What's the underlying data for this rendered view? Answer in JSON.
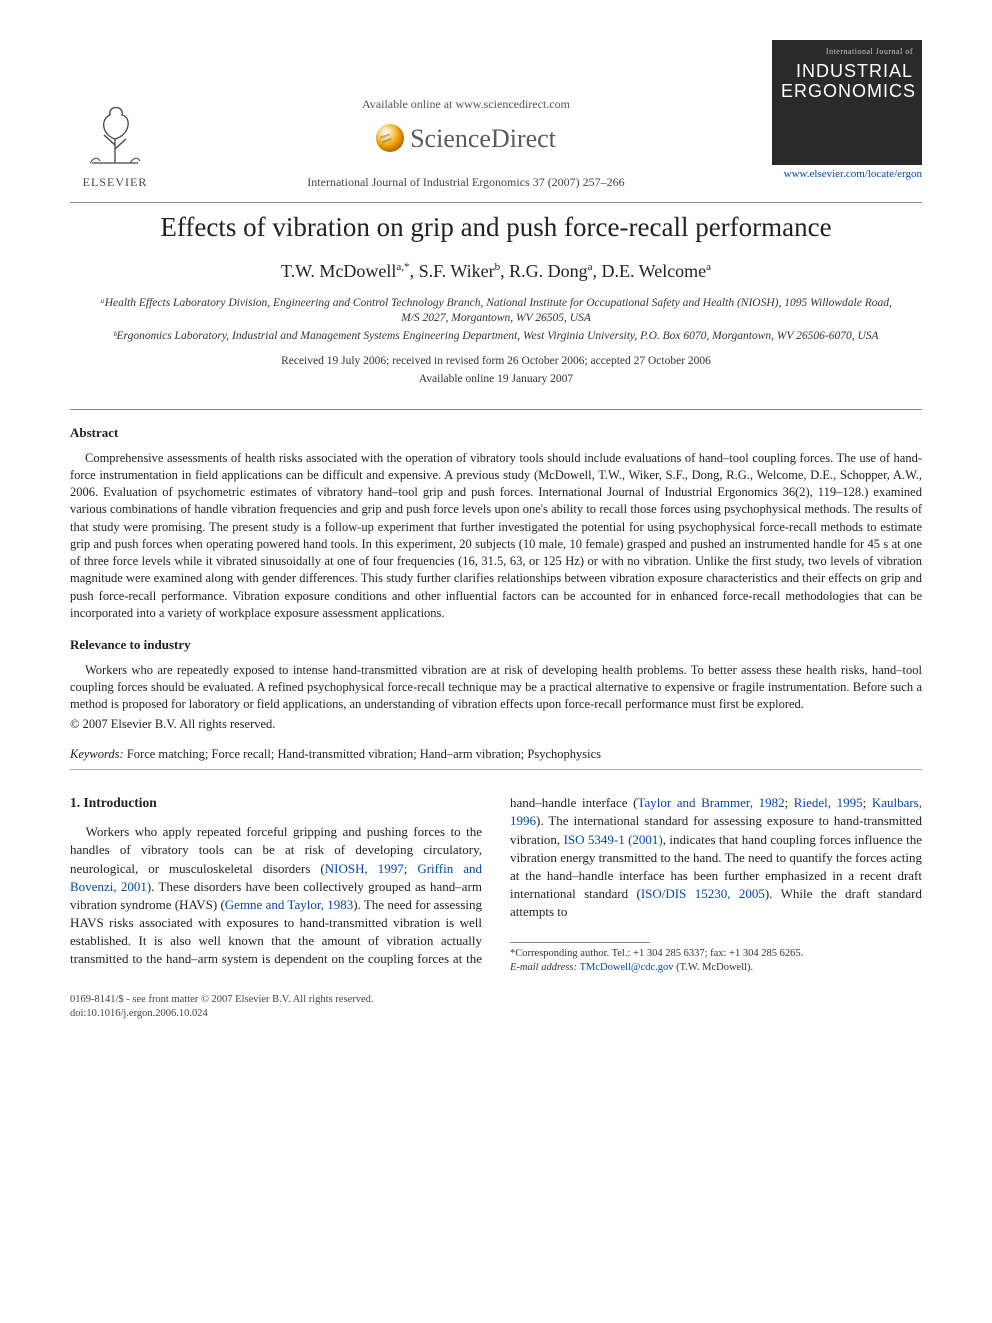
{
  "header": {
    "available_text": "Available online at www.sciencedirect.com",
    "sciencedirect": "ScienceDirect",
    "elsevier_label": "ELSEVIER",
    "citation": "International Journal of Industrial Ergonomics 37 (2007) 257–266",
    "journal_box": {
      "intj": "International Journal of",
      "line1": "INDUSTRIAL",
      "line2": "ERGONOMICS"
    },
    "journal_link": "www.elsevier.com/locate/ergon"
  },
  "article": {
    "title": "Effects of vibration on grip and push force-recall performance",
    "authors_html": "T.W. McDowell<sup>a,*</sup>, S.F. Wiker<sup>b</sup>, R.G. Dong<sup>a</sup>, D.E. Welcome<sup>a</sup>",
    "affil_a": "ᵃHealth Effects Laboratory Division, Engineering and Control Technology Branch, National Institute for Occupational Safety and Health (NIOSH), 1095 Willowdale Road, M/S 2027, Morgantown, WV 26505, USA",
    "affil_b": "ᵇErgonomics Laboratory, Industrial and Management Systems Engineering Department, West Virginia University, P.O. Box 6070, Morgantown, WV 26506-6070, USA",
    "dates1": "Received 19 July 2006; received in revised form 26 October 2006; accepted 27 October 2006",
    "dates2": "Available online 19 January 2007"
  },
  "abstract": {
    "head": "Abstract",
    "text": "Comprehensive assessments of health risks associated with the operation of vibratory tools should include evaluations of hand–tool coupling forces. The use of hand-force instrumentation in field applications can be difficult and expensive. A previous study (McDowell, T.W., Wiker, S.F., Dong, R.G., Welcome, D.E., Schopper, A.W., 2006. Evaluation of psychometric estimates of vibratory hand–tool grip and push forces. International Journal of Industrial Ergonomics 36(2), 119–128.) examined various combinations of handle vibration frequencies and grip and push force levels upon one's ability to recall those forces using psychophysical methods. The results of that study were promising. The present study is a follow-up experiment that further investigated the potential for using psychophysical force-recall methods to estimate grip and push forces when operating powered hand tools. In this experiment, 20 subjects (10 male, 10 female) grasped and pushed an instrumented handle for 45 s at one of three force levels while it vibrated sinusoidally at one of four frequencies (16, 31.5, 63, or 125 Hz) or with no vibration. Unlike the first study, two levels of vibration magnitude were examined along with gender differences. This study further clarifies relationships between vibration exposure characteristics and their effects on grip and push force-recall performance. Vibration exposure conditions and other influential factors can be accounted for in enhanced force-recall methodologies that can be incorporated into a variety of workplace exposure assessment applications."
  },
  "relevance": {
    "head": "Relevance to industry",
    "text": "Workers who are repeatedly exposed to intense hand-transmitted vibration are at risk of developing health problems. To better assess these health risks, hand–tool coupling forces should be evaluated. A refined psychophysical force-recall technique may be a practical alternative to expensive or fragile instrumentation. Before such a method is proposed for laboratory or field applications, an understanding of vibration effects upon force-recall performance must first be explored.",
    "copyright": "© 2007 Elsevier B.V. All rights reserved."
  },
  "keywords": {
    "label": "Keywords:",
    "text": " Force matching; Force recall; Hand-transmitted vibration; Hand–arm vibration; Psychophysics"
  },
  "intro": {
    "head": "1. Introduction",
    "col1": "Workers who apply repeated forceful gripping and pushing forces to the handles of vibratory tools can be at risk of developing circulatory, neurological, or musculoskeletal disorders (",
    "cite1": "NIOSH, 1997",
    "sep1": "; ",
    "cite2": "Griffin and Bovenzi, 2001",
    "col1b": "). These disorders have been collectively grouped as hand–arm vibration syndrome (HAVS) (",
    "cite3": "Gemne and Taylor, 1983",
    "col1c": "). The need for assessing HAVS risks ",
    "col2a": "associated with exposures to hand-transmitted vibration is well established. It is also well known that the amount of vibration actually transmitted to the hand–arm system is dependent on the coupling forces at the hand–handle interface (",
    "cite4": "Taylor and Brammer, 1982",
    "sep2": "; ",
    "cite5": "Riedel, 1995",
    "sep3": "; ",
    "cite6": "Kaulbars, 1996",
    "col2b": "). The international standard for assessing exposure to hand-transmitted vibration, ",
    "cite7": "ISO 5349-1 (2001)",
    "col2c": ", indicates that hand coupling forces influence the vibration energy transmitted to the hand. The need to quantify the forces acting at the hand–handle interface has been further emphasized in a recent draft international standard (",
    "cite8": "ISO/DIS 15230, 2005",
    "col2d": "). While the draft standard attempts to"
  },
  "footnote": {
    "corr": "*Corresponding author. Tel.: +1 304 285 6337; fax: +1 304 285 6265.",
    "email_label": "E-mail address: ",
    "email": "TMcDowell@cdc.gov",
    "email_tail": " (T.W. McDowell)."
  },
  "bottom": {
    "issn": "0169-8141/$ - see front matter © 2007 Elsevier B.V. All rights reserved.",
    "doi": "doi:10.1016/j.ergon.2006.10.024"
  },
  "colors": {
    "link": "#0645ad",
    "text": "#222222",
    "rule": "#888888",
    "journal_box_bg": "#2a2a2a"
  }
}
